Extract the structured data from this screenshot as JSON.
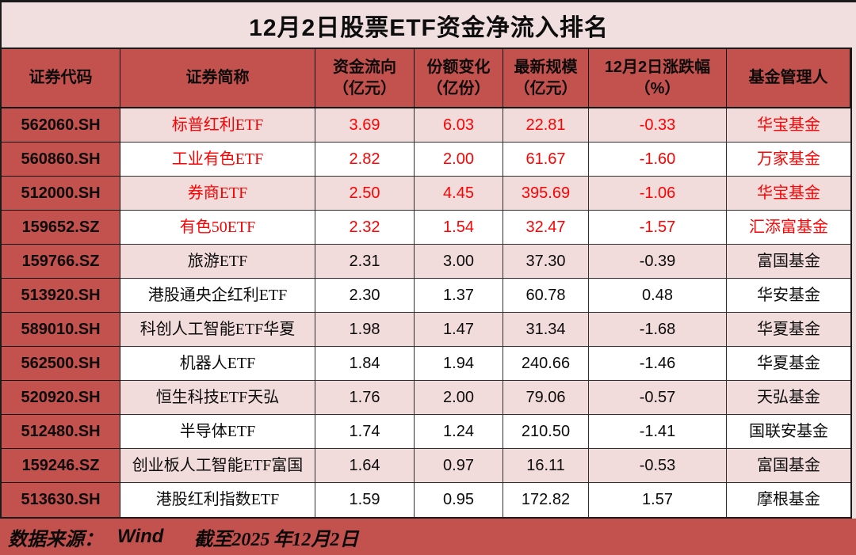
{
  "title": "12月2日股票ETF资金净流入排名",
  "colors": {
    "accent_red": "#c3514d",
    "page_pink": "#f1dede",
    "row_pink": "#f2dcdb",
    "row_white": "#ffffff",
    "highlight_text": "#fd0202",
    "text": "#0c0c0c",
    "border": "#1b1b1b"
  },
  "chart_data": {
    "type": "table",
    "title": "12月2日股票ETF资金净流入排名",
    "columns": [
      "证券代码",
      "证券简称",
      "资金流向（亿元）",
      "份额变化（亿份）",
      "最新规模（亿元）",
      "12月2日涨跌幅（%）",
      "基金管理人"
    ],
    "headers": [
      {
        "key": "code",
        "line1": "证券代码",
        "line2": ""
      },
      {
        "key": "name",
        "line1": "证券简称",
        "line2": ""
      },
      {
        "key": "flow",
        "line1": "资金流向",
        "line2": "（亿元）"
      },
      {
        "key": "share_change",
        "line1": "份额变化",
        "line2": "（亿份）"
      },
      {
        "key": "scale",
        "line1": "最新规模",
        "line2": "（亿元）"
      },
      {
        "key": "change_pct",
        "line1": "12月2日涨跌幅",
        "line2": "（%）"
      },
      {
        "key": "manager",
        "line1": "基金管理人",
        "line2": ""
      }
    ],
    "rows": [
      {
        "code": "562060.SH",
        "name": "标普红利ETF",
        "flow": "3.69",
        "share_change": "6.03",
        "scale": "22.81",
        "change_pct": "-0.33",
        "manager": "华宝基金",
        "highlight": true
      },
      {
        "code": "560860.SH",
        "name": "工业有色ETF",
        "flow": "2.82",
        "share_change": "2.00",
        "scale": "61.67",
        "change_pct": "-1.60",
        "manager": "万家基金",
        "highlight": true
      },
      {
        "code": "512000.SH",
        "name": "券商ETF",
        "flow": "2.50",
        "share_change": "4.45",
        "scale": "395.69",
        "change_pct": "-1.06",
        "manager": "华宝基金",
        "highlight": true
      },
      {
        "code": "159652.SZ",
        "name": "有色50ETF",
        "flow": "2.32",
        "share_change": "1.54",
        "scale": "32.47",
        "change_pct": "-1.57",
        "manager": "汇添富基金",
        "highlight": true
      },
      {
        "code": "159766.SZ",
        "name": "旅游ETF",
        "flow": "2.31",
        "share_change": "3.00",
        "scale": "37.30",
        "change_pct": "-0.39",
        "manager": "富国基金",
        "highlight": false
      },
      {
        "code": "513920.SH",
        "name": "港股通央企红利ETF",
        "flow": "2.30",
        "share_change": "1.37",
        "scale": "60.78",
        "change_pct": "0.48",
        "manager": "华安基金",
        "highlight": false
      },
      {
        "code": "589010.SH",
        "name": "科创人工智能ETF华夏",
        "flow": "1.98",
        "share_change": "1.47",
        "scale": "31.34",
        "change_pct": "-1.68",
        "manager": "华夏基金",
        "highlight": false
      },
      {
        "code": "562500.SH",
        "name": "机器人ETF",
        "flow": "1.84",
        "share_change": "1.94",
        "scale": "240.66",
        "change_pct": "-1.46",
        "manager": "华夏基金",
        "highlight": false
      },
      {
        "code": "520920.SH",
        "name": "恒生科技ETF天弘",
        "flow": "1.76",
        "share_change": "2.00",
        "scale": "79.06",
        "change_pct": "-0.57",
        "manager": "天弘基金",
        "highlight": false
      },
      {
        "code": "512480.SH",
        "name": "半导体ETF",
        "flow": "1.74",
        "share_change": "1.24",
        "scale": "210.50",
        "change_pct": "-1.41",
        "manager": "国联安基金",
        "highlight": false
      },
      {
        "code": "159246.SZ",
        "name": "创业板人工智能ETF富国",
        "flow": "1.64",
        "share_change": "0.97",
        "scale": "16.11",
        "change_pct": "-0.53",
        "manager": "富国基金",
        "highlight": false
      },
      {
        "code": "513630.SH",
        "name": "港股红利指数ETF",
        "flow": "1.59",
        "share_change": "0.95",
        "scale": "172.82",
        "change_pct": "1.57",
        "manager": "摩根基金",
        "highlight": false
      }
    ],
    "legend_position": "none",
    "grid": true
  },
  "footer": {
    "source_label": "数据来源：",
    "source_name": "Wind",
    "asof_bold": "截至2025",
    "asof_rest": "年12月2日"
  }
}
